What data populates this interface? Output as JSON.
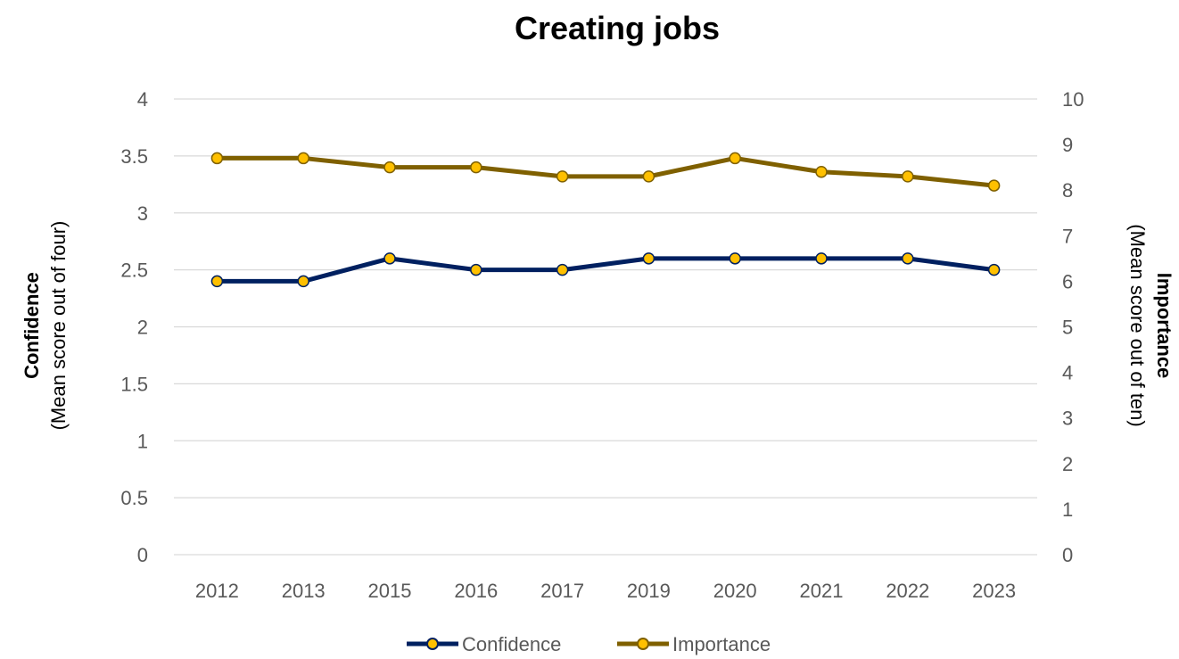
{
  "chart_data": {
    "type": "line",
    "title": "Creating jobs",
    "categories": [
      "2012",
      "2013",
      "2015",
      "2016",
      "2017",
      "2019",
      "2020",
      "2021",
      "2022",
      "2023"
    ],
    "y_left": {
      "label_bold": "Confidence",
      "label_sub": "(Mean score out of four)",
      "ticks": [
        "0",
        "0.5",
        "1",
        "1.5",
        "2",
        "2.5",
        "3",
        "3.5",
        "4"
      ],
      "range": [
        0,
        4
      ]
    },
    "y_right": {
      "label_bold": "Importance",
      "label_sub": "(Mean score out of ten)",
      "ticks": [
        "0",
        "1",
        "2",
        "3",
        "4",
        "5",
        "6",
        "7",
        "8",
        "9",
        "10"
      ],
      "range": [
        0,
        10
      ]
    },
    "series": [
      {
        "name": "Confidence",
        "axis": "left",
        "color": "#002060",
        "marker_color": "#ffc000",
        "values": [
          2.4,
          2.4,
          2.6,
          2.5,
          2.5,
          2.6,
          2.6,
          2.6,
          2.6,
          2.5
        ]
      },
      {
        "name": "Importance",
        "axis": "right",
        "color": "#7f6000",
        "marker_color": "#ffc000",
        "values": [
          8.7,
          8.7,
          8.5,
          8.5,
          8.3,
          8.3,
          8.7,
          8.4,
          8.3,
          8.1
        ]
      }
    ],
    "grid": true,
    "legend_position": "bottom"
  }
}
